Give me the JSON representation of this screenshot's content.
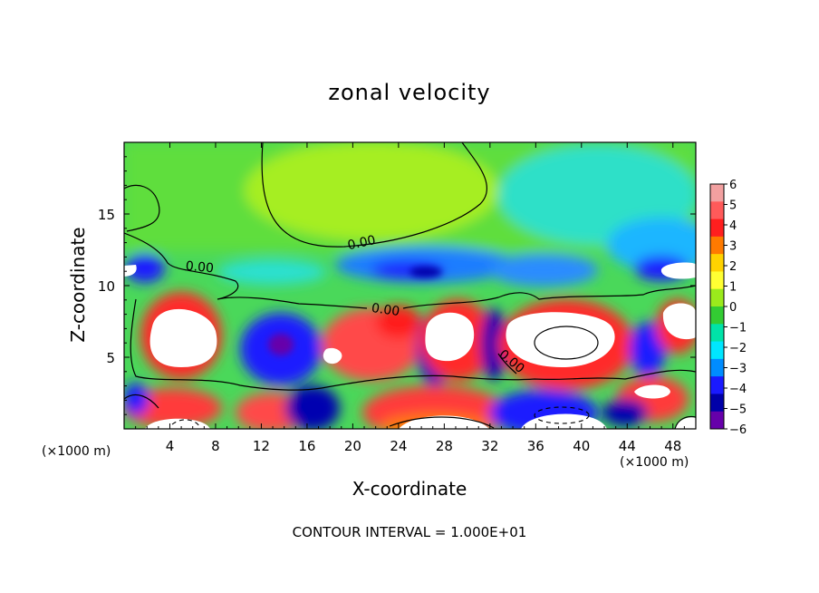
{
  "chart_data": {
    "type": "heatmap",
    "title": "zonal velocity",
    "xlabel": "X-coordinate",
    "ylabel": "Z-coordinate",
    "x_unit_label": "(×1000 m)",
    "xlim": [
      0,
      50
    ],
    "ylim": [
      0,
      20
    ],
    "x_ticks": [
      4,
      8,
      12,
      16,
      20,
      24,
      28,
      32,
      36,
      40,
      44,
      48
    ],
    "y_ticks": [
      5,
      10,
      15
    ],
    "colorbar": {
      "ticks": [
        6,
        5,
        4,
        3,
        2,
        1,
        0,
        -1,
        -2,
        -3,
        -4,
        -5,
        -6
      ],
      "colors": [
        "#f2a0a0",
        "#ff5a5a",
        "#ff1f1f",
        "#ff7a00",
        "#ffd200",
        "#ffff33",
        "#9bea1c",
        "#33cc33",
        "#00e3a8",
        "#00e6ff",
        "#008cff",
        "#1a1aff",
        "#0000a8",
        "#6600aa"
      ]
    },
    "contour_labels": [
      "0.00",
      "0.00",
      "0.00",
      "0.00"
    ],
    "contour_interval_text": "CONTOUR INTERVAL = 1.000E+01",
    "grid": false
  }
}
